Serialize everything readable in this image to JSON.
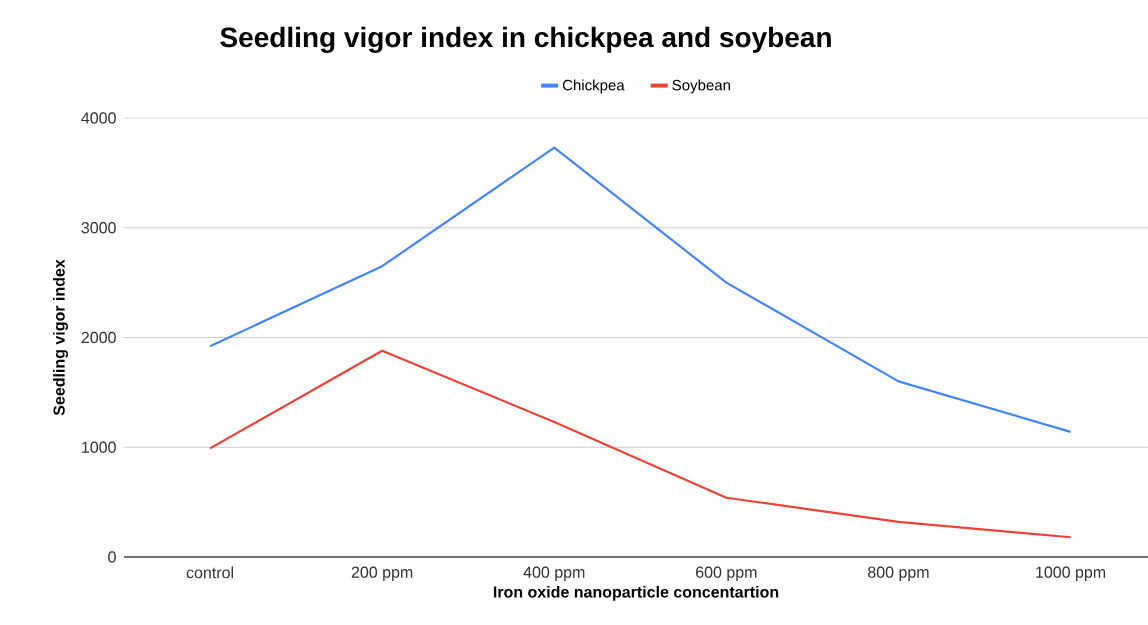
{
  "chart_data": {
    "type": "line",
    "title": "Seedling vigor index in chickpea and soybean",
    "xlabel": "Iron oxide nanoparticle concentartion",
    "ylabel": "Seedling vigor index",
    "categories": [
      "control",
      "200 ppm",
      "400 ppm",
      "600 ppm",
      "800 ppm",
      "1000 ppm"
    ],
    "series": [
      {
        "name": "Chickpea",
        "color": "#4285f4",
        "values": [
          1920,
          2650,
          3730,
          2500,
          1600,
          1140
        ]
      },
      {
        "name": "Soybean",
        "color": "#ea4335",
        "values": [
          990,
          1880,
          1230,
          540,
          320,
          180
        ]
      }
    ],
    "ylim": [
      0,
      4000
    ],
    "yticks": [
      0,
      1000,
      2000,
      3000,
      4000
    ],
    "grid": "y",
    "legend": "top",
    "marker": "none",
    "line_style": "solid"
  }
}
